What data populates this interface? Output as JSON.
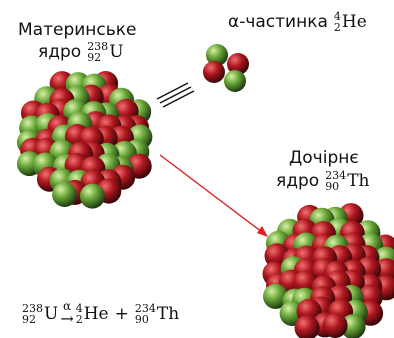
{
  "parent": {
    "title_line1": "Материнське",
    "title_line2": "ядро",
    "nuclide": {
      "mass": "238",
      "charge": "92",
      "symbol": "U"
    }
  },
  "alpha": {
    "title": "α-частинка",
    "nuclide": {
      "mass": "4",
      "charge": "2",
      "symbol": "He"
    }
  },
  "daughter": {
    "title_line1": "Дочірнє",
    "title_line2": "ядро",
    "nuclide": {
      "mass": "234",
      "charge": "90",
      "symbol": "Th"
    }
  },
  "equation": {
    "reactant": {
      "mass": "238",
      "charge": "92",
      "symbol": "U"
    },
    "arrow_label": "α",
    "arrow": "→",
    "plus": "+",
    "product1": {
      "mass": "4",
      "charge": "2",
      "symbol": "He"
    },
    "product2": {
      "mass": "234",
      "charge": "90",
      "symbol": "Th"
    }
  },
  "colors": {
    "proton": "#b01820",
    "neutron": "#6aa83a",
    "arrow": "#e02020",
    "motion_lines": "#111111"
  }
}
